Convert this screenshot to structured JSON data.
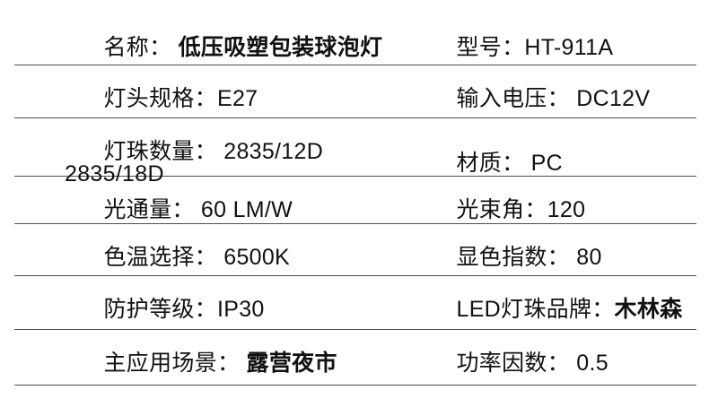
{
  "page": {
    "background_color": "#ffffff",
    "text_color": "#111111",
    "divider_color": "#4d4d4d"
  },
  "spec_table": {
    "rows": [
      {
        "left_label": "名称：",
        "left_value": " 低压吸塑包装球泡灯",
        "right_label": "型号：",
        "right_value": "HT-911A"
      },
      {
        "left_label": "灯头规格：",
        "left_value": "E27",
        "right_label": "输入电压：",
        "right_value": " DC12V"
      },
      {
        "left_label": "灯珠数量：",
        "left_value": " 2835/12D  2835/18D",
        "right_label": "材质：",
        "right_value": " PC"
      },
      {
        "left_label": "光通量：",
        "left_value": " 60 LM/W",
        "right_label": "光束角：",
        "right_value": "120"
      },
      {
        "left_label": "色温选择：",
        "left_value": " 6500K",
        "right_label": "显色指数：",
        "right_value": " 80"
      },
      {
        "left_label": "防护等级：",
        "left_value": "IP30",
        "right_label": "LED灯珠品牌：",
        "right_value": "木林森"
      },
      {
        "left_label": "主应用场景：",
        "left_value": " 露营夜市",
        "right_label": "功率因数：",
        "right_value": " 0.5"
      }
    ]
  }
}
